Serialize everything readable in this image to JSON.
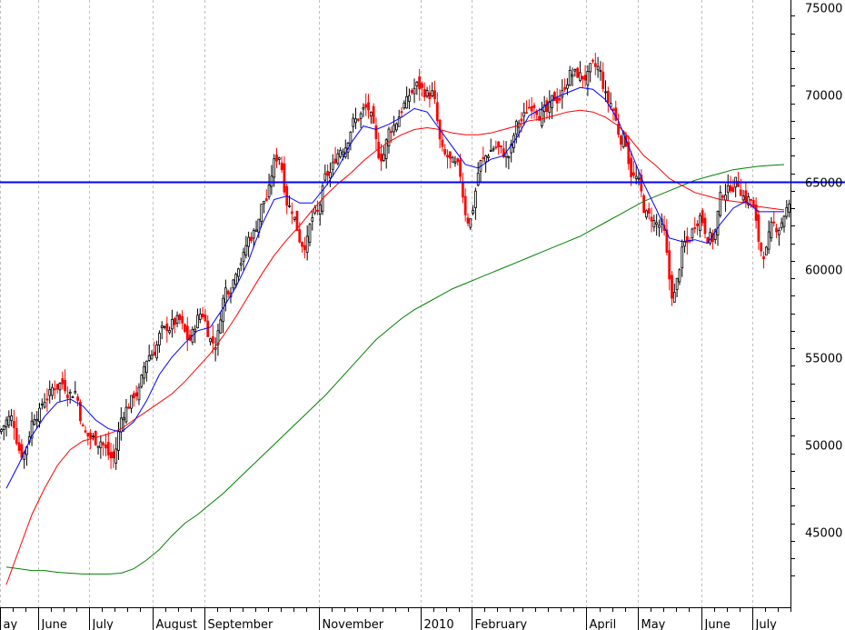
{
  "chart_data": {
    "type": "candlestick",
    "title": "",
    "xlabel": "",
    "ylabel": "",
    "ylim": [
      40700,
      75400
    ],
    "y_ticks": [
      {
        "value": 75000,
        "label": "75000"
      },
      {
        "value": 70000,
        "label": "70000"
      },
      {
        "value": 65000,
        "label": "65000"
      },
      {
        "value": 60000,
        "label": "60000"
      },
      {
        "value": 55000,
        "label": "55000"
      },
      {
        "value": 50000,
        "label": "50000"
      },
      {
        "value": 45000,
        "label": "45000"
      }
    ],
    "x_months": [
      {
        "label": "ay",
        "week": 0
      },
      {
        "label": "June",
        "week": 3
      },
      {
        "label": "July",
        "week": 7
      },
      {
        "label": "August",
        "week": 12
      },
      {
        "label": "September",
        "week": 16
      },
      {
        "label": "November",
        "week": 25
      },
      {
        "label": "2010",
        "week": 33
      },
      {
        "label": "February",
        "week": 37
      },
      {
        "label": "April",
        "week": 46
      },
      {
        "label": "May",
        "week": 50
      },
      {
        "label": "June",
        "week": 55
      },
      {
        "label": "July",
        "week": 59
      }
    ],
    "weeks_total": 62,
    "closes": [
      51500,
      49500,
      51800,
      52800,
      53500,
      53000,
      50500,
      50200,
      49200,
      52000,
      53000,
      55200,
      56500,
      57000,
      56000,
      57500,
      55800,
      59000,
      60500,
      62000,
      64000,
      66500,
      63500,
      61500,
      63200,
      65500,
      67000,
      68500,
      69200,
      66500,
      68200,
      69500,
      70500,
      70000,
      66500,
      65800,
      62800,
      66200,
      67000,
      66500,
      68500,
      69500,
      69000,
      69800,
      71200,
      71000,
      71500,
      69500,
      67500,
      65200,
      63000,
      62500,
      58500,
      61500,
      63000,
      61800,
      64500,
      65000,
      64000,
      61000,
      62500,
      63500
    ],
    "ma_short_label": "",
    "ma_short": [
      47500,
      48900,
      50500,
      51600,
      52400,
      52600,
      52200,
      51400,
      50900,
      50700,
      51300,
      52500,
      54000,
      55000,
      55800,
      56500,
      56700,
      57800,
      59000,
      60500,
      62500,
      64000,
      64200,
      63800,
      63800,
      64700,
      65800,
      67200,
      68200,
      68000,
      68300,
      68700,
      69200,
      69000,
      68000,
      67000,
      66000,
      65800,
      66300,
      66500,
      67500,
      68800,
      69200,
      69800,
      70100,
      70400,
      70300,
      69700,
      68500,
      66700,
      64900,
      63400,
      61800,
      61600,
      61700,
      61500,
      62600,
      63500,
      63900,
      63300,
      63300,
      63300
    ],
    "ma_mid_label": "",
    "ma_mid": [
      42000,
      44000,
      46000,
      47500,
      48800,
      49700,
      50200,
      50400,
      50600,
      50900,
      51400,
      51900,
      52400,
      52900,
      53600,
      54400,
      55200,
      56200,
      57300,
      58500,
      59700,
      60800,
      61700,
      62500,
      63400,
      64200,
      64900,
      65500,
      66200,
      66800,
      67300,
      67700,
      68000,
      68100,
      68000,
      67800,
      67700,
      67700,
      67800,
      68000,
      68200,
      68500,
      68600,
      68800,
      69000,
      69100,
      69000,
      68700,
      68200,
      67400,
      66500,
      65900,
      65200,
      64800,
      64400,
      64200,
      64000,
      63900,
      63800,
      63600,
      63500,
      63400
    ],
    "ma_long_label": "",
    "ma_long": [
      43000,
      42900,
      42800,
      42800,
      42700,
      42650,
      42600,
      42600,
      42600,
      42650,
      42900,
      43400,
      44000,
      44800,
      45500,
      46000,
      46600,
      47200,
      47900,
      48600,
      49300,
      50000,
      50700,
      51400,
      52100,
      52800,
      53600,
      54400,
      55200,
      56000,
      56600,
      57200,
      57700,
      58100,
      58500,
      58900,
      59200,
      59500,
      59800,
      60100,
      60400,
      60700,
      61000,
      61300,
      61600,
      61900,
      62300,
      62700,
      63100,
      63500,
      63900,
      64200,
      64500,
      64800,
      65100,
      65300,
      65500,
      65700,
      65800,
      65900,
      65950,
      66000
    ],
    "hline": {
      "value": 65000,
      "color": "#0000ff"
    },
    "colors": {
      "up": "#000000",
      "down": "#ff0000",
      "ma_short": "#0000ff",
      "ma_mid": "#ff0000",
      "ma_long": "#008000",
      "grid": "#c0c0c0",
      "axis": "#000000"
    },
    "grid": true,
    "axis_side": "right"
  }
}
